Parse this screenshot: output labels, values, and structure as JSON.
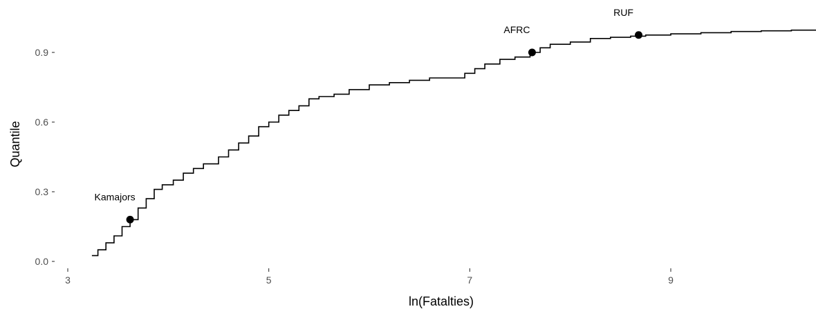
{
  "chart_data": {
    "type": "line",
    "title": "",
    "xlabel": "ln(Fatalties)",
    "ylabel": "Quantile",
    "xlim": [
      2.95,
      10.45
    ],
    "ylim": [
      -0.03,
      1.0
    ],
    "xticks": [
      3,
      5,
      7,
      9
    ],
    "yticks": [
      0.0,
      0.3,
      0.6,
      0.9
    ],
    "ytick_labels": [
      "0.0",
      "0.3",
      "0.6",
      "0.9"
    ],
    "grid": false,
    "legend": "none",
    "series": [
      {
        "style": "step",
        "x": [
          3.24,
          3.3,
          3.38,
          3.46,
          3.54,
          3.62,
          3.7,
          3.78,
          3.86,
          3.94,
          4.05,
          4.15,
          4.25,
          4.35,
          4.5,
          4.6,
          4.7,
          4.8,
          4.9,
          5.0,
          5.1,
          5.2,
          5.3,
          5.4,
          5.5,
          5.65,
          5.8,
          6.0,
          6.2,
          6.4,
          6.6,
          6.8,
          6.95,
          7.05,
          7.15,
          7.3,
          7.45,
          7.6,
          7.7,
          7.8,
          8.0,
          8.2,
          8.4,
          8.6,
          8.75,
          9.0,
          9.3,
          9.6,
          9.9,
          10.2,
          10.45
        ],
        "y": [
          0.025,
          0.05,
          0.08,
          0.11,
          0.15,
          0.18,
          0.23,
          0.27,
          0.31,
          0.33,
          0.35,
          0.38,
          0.4,
          0.42,
          0.45,
          0.48,
          0.51,
          0.54,
          0.58,
          0.6,
          0.63,
          0.65,
          0.67,
          0.7,
          0.71,
          0.72,
          0.74,
          0.76,
          0.77,
          0.78,
          0.79,
          0.79,
          0.81,
          0.83,
          0.85,
          0.87,
          0.88,
          0.9,
          0.92,
          0.935,
          0.945,
          0.96,
          0.965,
          0.97,
          0.975,
          0.98,
          0.985,
          0.99,
          0.993,
          0.996,
          0.998
        ]
      }
    ],
    "points": [
      {
        "label": "Kamajors",
        "x": 3.62,
        "y": 0.18
      },
      {
        "label": "AFRC",
        "x": 7.62,
        "y": 0.9
      },
      {
        "label": "RUF",
        "x": 8.68,
        "y": 0.975
      }
    ]
  }
}
